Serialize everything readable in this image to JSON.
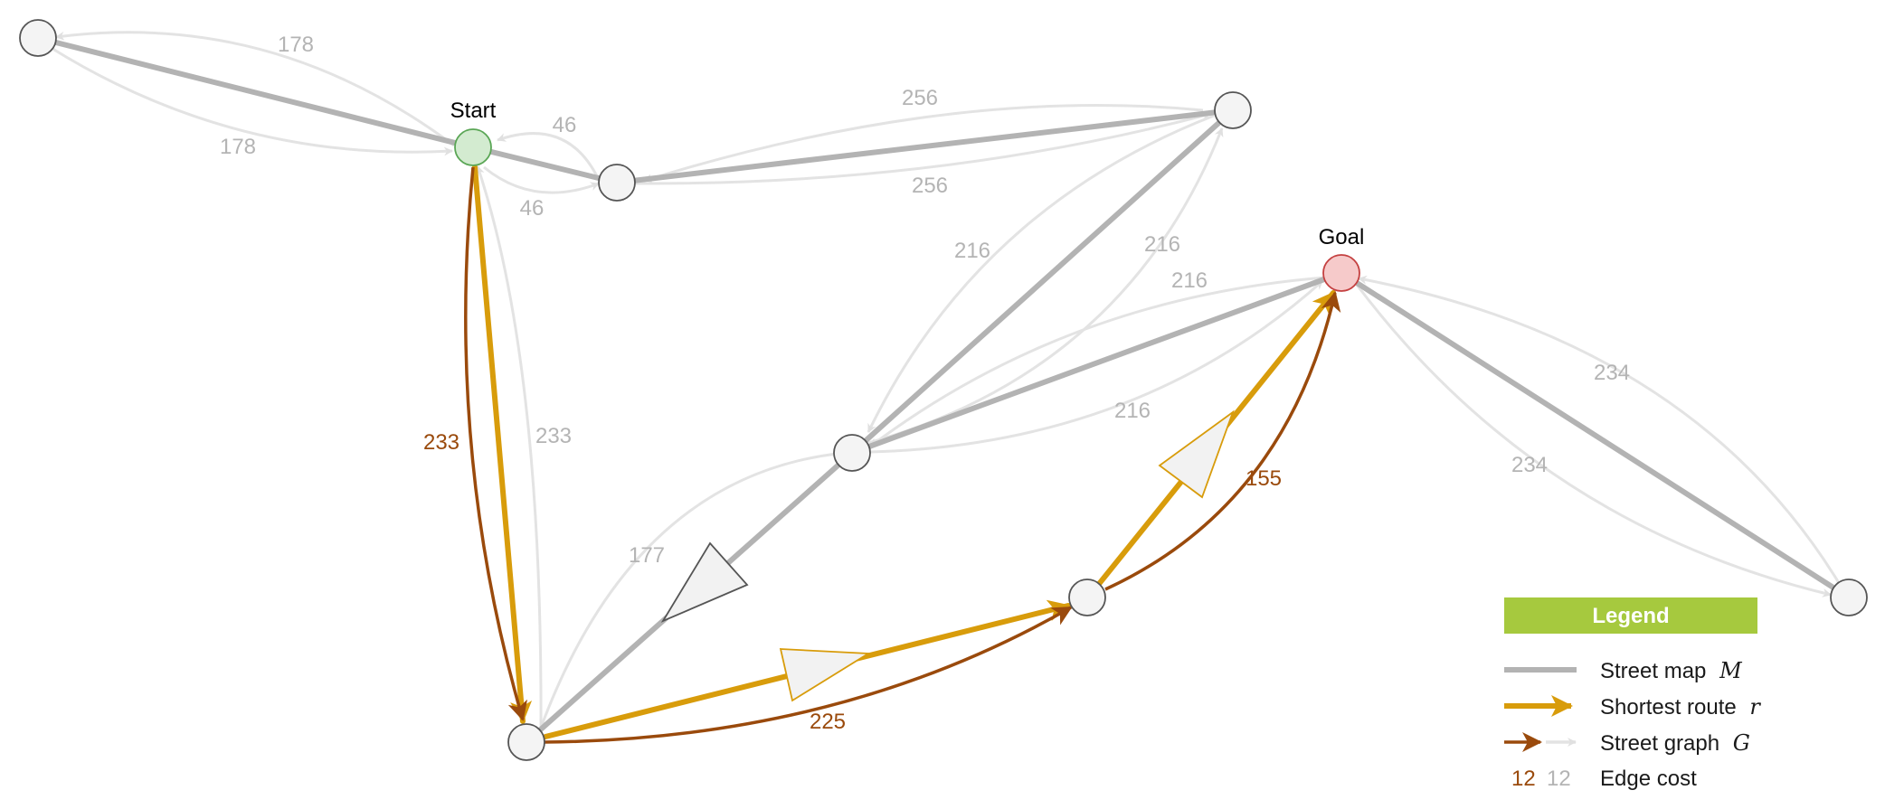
{
  "nodes": {
    "start_label": "Start",
    "goal_label": "Goal"
  },
  "edge_costs": {
    "tl_upper": "178",
    "tl_lower": "178",
    "short_upper": "46",
    "short_lower": "46",
    "top_upper": "256",
    "top_lower": "256",
    "diag_left": "216",
    "diag_right": "216",
    "goal_mid_upper": "216",
    "goal_mid_lower": "216",
    "right_upper": "234",
    "right_lower": "234",
    "start_down_brown": "233",
    "start_down_grey": "233",
    "mid_down_grey": "177",
    "bottom_brown": "225",
    "goal_up_brown": "155"
  },
  "legend": {
    "title": "Legend",
    "street_map_label": "Street map",
    "street_map_var": "M",
    "shortest_route_label": "Shortest route",
    "shortest_route_var": "r",
    "street_graph_label": "Street graph",
    "street_graph_var": "G",
    "cost_sample_brown": "12",
    "cost_sample_grey": "12",
    "edge_cost_label": "Edge cost"
  },
  "colors": {
    "street_map": "#b3b3b3",
    "graph_edge": "#e3e3e3",
    "route": "#d89c0b",
    "route_graph": "#9a4a0c",
    "start_fill": "#d3ebd0",
    "goal_fill": "#f6caca",
    "node_fill": "#f4f4f4",
    "legend_bg": "#a6c93e"
  }
}
